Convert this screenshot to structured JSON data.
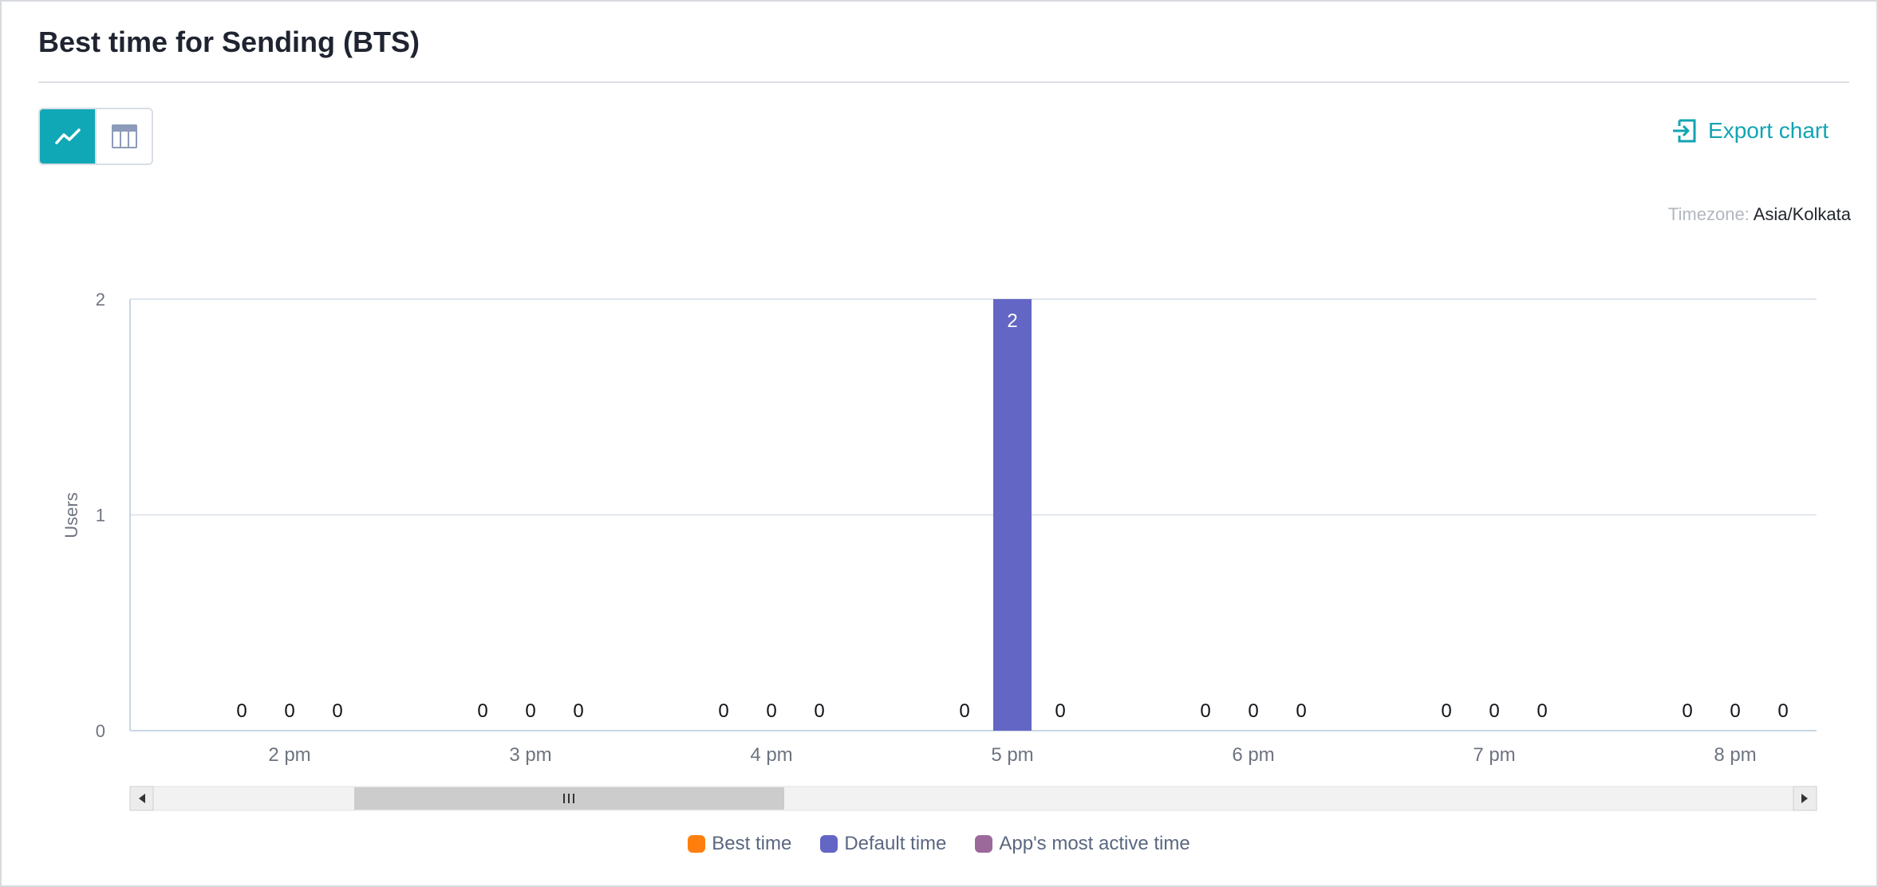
{
  "header": {
    "title": "Best time for Sending (BTS)"
  },
  "toolbar": {
    "chart_view_icon": "line-chart-icon",
    "table_view_icon": "table-icon",
    "export_label": "Export chart",
    "export_icon": "export-icon"
  },
  "timezone": {
    "label": "Timezone:",
    "value": "Asia/Kolkata"
  },
  "colors": {
    "accent": "#10a8b6",
    "best_time": "#ff7f0e",
    "default_time": "#6366c4",
    "most_active": "#9c6a9a"
  },
  "chart_data": {
    "type": "bar",
    "ylabel": "Users",
    "xlabel": "",
    "ylim": [
      0,
      2
    ],
    "yticks": [
      0,
      1,
      2
    ],
    "categories": [
      "2 pm",
      "3 pm",
      "4 pm",
      "5 pm",
      "6 pm",
      "7 pm",
      "8 pm"
    ],
    "series": [
      {
        "name": "Best time",
        "color": "#ff7f0e",
        "values": [
          0,
          0,
          0,
          0,
          0,
          0,
          0
        ]
      },
      {
        "name": "Default time",
        "color": "#6366c4",
        "values": [
          0,
          0,
          0,
          2,
          0,
          0,
          0
        ]
      },
      {
        "name": "App's most active time",
        "color": "#9c6a9a",
        "values": [
          0,
          0,
          0,
          0,
          0,
          0,
          0
        ]
      }
    ],
    "data_labels": true,
    "grid": true,
    "legend_position": "bottom",
    "scrollbar": true
  }
}
